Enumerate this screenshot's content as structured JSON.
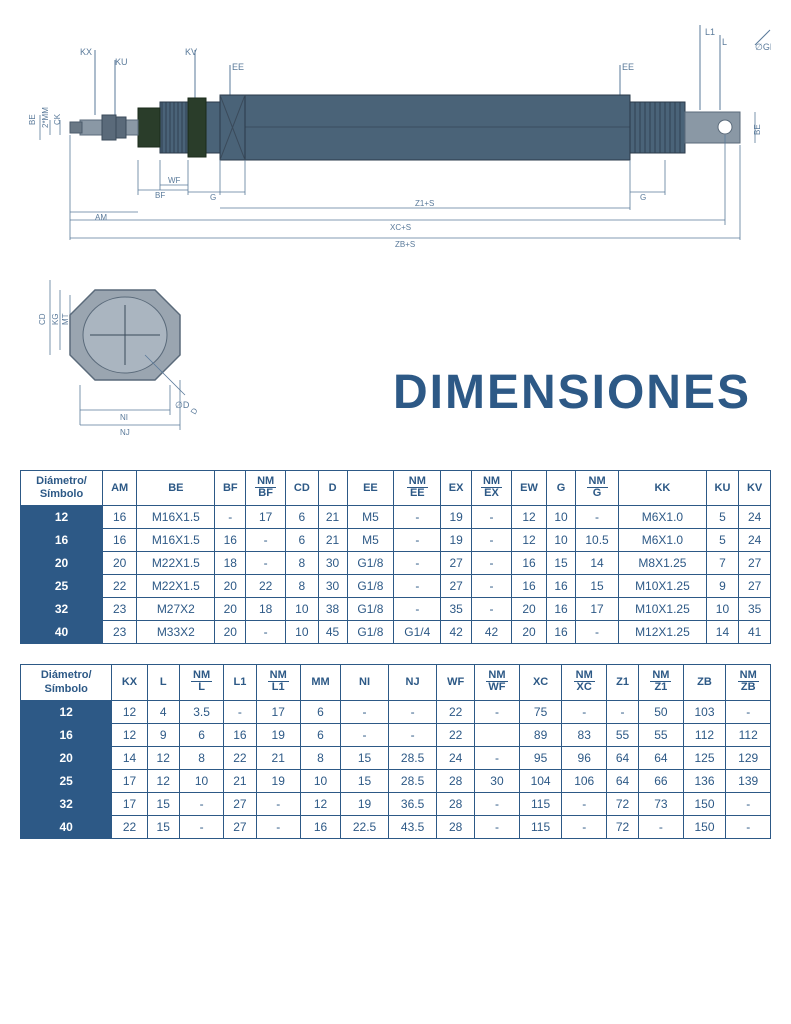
{
  "title": "DIMENSIONES",
  "colors": {
    "primary": "#2d5986",
    "cylinder": "#4a6378",
    "nut": "#2a3d2a",
    "line": "#5a7a9a",
    "white": "#ffffff"
  },
  "diagram_labels": {
    "kx": "KX",
    "ku": "KU",
    "kv": "KV",
    "ee": "EE",
    "ee2": "EE",
    "l1": "L1",
    "l": "L",
    "gd": "∅GD",
    "be": "BE",
    "be2": "BE",
    "ck": "CK",
    "mm": "2*MM",
    "bf": "BF",
    "wf": "WF",
    "g": "G",
    "g2": "G",
    "z1s": "Z1+S",
    "am": "AM",
    "xcs": "XC+S",
    "zbs": "ZB+S",
    "cd": "CD",
    "kg": "KG",
    "mt": "MT",
    "ni": "NI",
    "nj": "NJ",
    "d": "D"
  },
  "table1": {
    "header_first": "Diámetro/\nSímbolo",
    "columns": [
      "AM",
      "BE",
      "BF",
      "NM/BF",
      "CD",
      "D",
      "EE",
      "NM/EE",
      "EX",
      "NM/EX",
      "EW",
      "G",
      "NM/G",
      "KK",
      "KU",
      "KV"
    ],
    "frac_cols": [
      3,
      7,
      9,
      12
    ],
    "rows": [
      {
        "d": "12",
        "v": [
          "16",
          "M16X1.5",
          "-",
          "17",
          "6",
          "21",
          "M5",
          "-",
          "19",
          "-",
          "12",
          "10",
          "-",
          "M6X1.0",
          "5",
          "24"
        ]
      },
      {
        "d": "16",
        "v": [
          "16",
          "M16X1.5",
          "16",
          "-",
          "6",
          "21",
          "M5",
          "-",
          "19",
          "-",
          "12",
          "10",
          "10.5",
          "M6X1.0",
          "5",
          "24"
        ]
      },
      {
        "d": "20",
        "v": [
          "20",
          "M22X1.5",
          "18",
          "-",
          "8",
          "30",
          "G1/8",
          "-",
          "27",
          "-",
          "16",
          "15",
          "14",
          "M8X1.25",
          "7",
          "27"
        ]
      },
      {
        "d": "25",
        "v": [
          "22",
          "M22X1.5",
          "20",
          "22",
          "8",
          "30",
          "G1/8",
          "-",
          "27",
          "-",
          "16",
          "16",
          "15",
          "M10X1.25",
          "9",
          "27"
        ]
      },
      {
        "d": "32",
        "v": [
          "23",
          "M27X2",
          "20",
          "18",
          "10",
          "38",
          "G1/8",
          "-",
          "35",
          "-",
          "20",
          "16",
          "17",
          "M10X1.25",
          "10",
          "35"
        ]
      },
      {
        "d": "40",
        "v": [
          "23",
          "M33X2",
          "20",
          "-",
          "10",
          "45",
          "G1/8",
          "G1/4",
          "42",
          "42",
          "20",
          "16",
          "-",
          "M12X1.25",
          "14",
          "41"
        ]
      }
    ]
  },
  "table2": {
    "header_first": "Diámetro/\nSímbolo",
    "columns": [
      "KX",
      "L",
      "NM/L",
      "L1",
      "NM/L1",
      "MM",
      "NI",
      "NJ",
      "WF",
      "NM/WF",
      "XC",
      "NM/XC",
      "Z1",
      "NM/Z1",
      "ZB",
      "NM/ZB"
    ],
    "frac_cols": [
      2,
      4,
      9,
      11,
      13,
      15
    ],
    "rows": [
      {
        "d": "12",
        "v": [
          "12",
          "4",
          "3.5",
          "-",
          "17",
          "6",
          "-",
          "-",
          "22",
          "-",
          "75",
          "-",
          "-",
          "50",
          "103",
          "-"
        ]
      },
      {
        "d": "16",
        "v": [
          "12",
          "9",
          "6",
          "16",
          "19",
          "6",
          "-",
          "-",
          "22",
          "",
          "89",
          "83",
          "55",
          "55",
          "112",
          "112"
        ]
      },
      {
        "d": "20",
        "v": [
          "14",
          "12",
          "8",
          "22",
          "21",
          "8",
          "15",
          "28.5",
          "24",
          "-",
          "95",
          "96",
          "64",
          "64",
          "125",
          "129"
        ]
      },
      {
        "d": "25",
        "v": [
          "17",
          "12",
          "10",
          "21",
          "19",
          "10",
          "15",
          "28.5",
          "28",
          "30",
          "104",
          "106",
          "64",
          "66",
          "136",
          "139"
        ]
      },
      {
        "d": "32",
        "v": [
          "17",
          "15",
          "-",
          "27",
          "-",
          "12",
          "19",
          "36.5",
          "28",
          "-",
          "115",
          "-",
          "72",
          "73",
          "150",
          "-"
        ]
      },
      {
        "d": "40",
        "v": [
          "22",
          "15",
          "-",
          "27",
          "-",
          "16",
          "22.5",
          "43.5",
          "28",
          "-",
          "115",
          "-",
          "72",
          "-",
          "150",
          "-"
        ]
      }
    ]
  }
}
